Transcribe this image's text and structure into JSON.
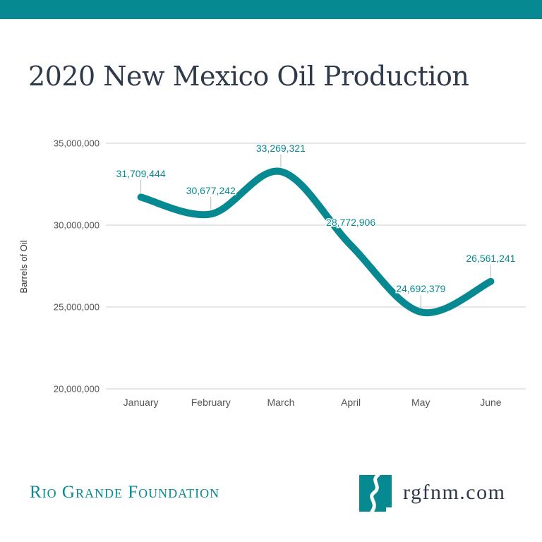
{
  "header": {
    "title": "2020 New Mexico Oil Production"
  },
  "footer": {
    "organization": "Rio Grande Foundation",
    "website": "rgfnm.com"
  },
  "colors": {
    "accent": "#078991",
    "title_text": "#2e3a4a",
    "axis_text": "#555555",
    "grid": "#cccccc"
  },
  "icons": {
    "logo": "new-mexico-river-logo-icon"
  },
  "chart_data": {
    "type": "line",
    "smooth": true,
    "title": "2020 New Mexico Oil Production",
    "xlabel": "",
    "ylabel": "Barrels of Oil",
    "categories": [
      "January",
      "February",
      "March",
      "April",
      "May",
      "June"
    ],
    "series": [
      {
        "values": [
          31709444,
          30677242,
          33269321,
          28772906,
          24692379,
          26561241
        ]
      }
    ],
    "data_labels": [
      "31,709,444",
      "30,677,242",
      "33,269,321",
      "28,772,906",
      "24,692,379",
      "26,561,241"
    ],
    "ylim": [
      20000000,
      35000000
    ],
    "yticks": [
      20000000,
      25000000,
      30000000,
      35000000
    ],
    "ytick_labels": [
      "20,000,000",
      "25,000,000",
      "30,000,000",
      "35,000,000"
    ],
    "grid": true,
    "legend": "none"
  }
}
